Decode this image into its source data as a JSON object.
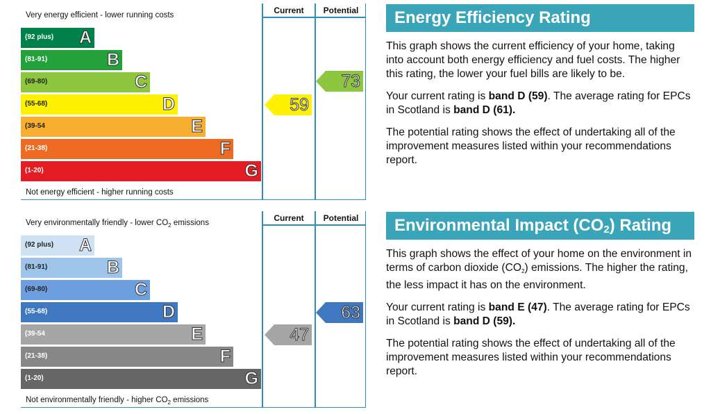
{
  "chart_data": [
    {
      "type": "bar",
      "top_label": "Very energy efficient - lower running costs",
      "bottom_label": "Not energy efficient - higher running costs",
      "column_headers": [
        "Current",
        "Potential"
      ],
      "bands": [
        {
          "range": "(92 plus)",
          "letter": "A",
          "color": "#00814a"
        },
        {
          "range": "(81-91)",
          "letter": "B",
          "color": "#23a23b"
        },
        {
          "range": "(69-80)",
          "letter": "C",
          "color": "#8dc63f"
        },
        {
          "range": "(55-68)",
          "letter": "D",
          "color": "#fff200"
        },
        {
          "range": "(39-54",
          "letter": "E",
          "color": "#f8ae2f"
        },
        {
          "range": "(21-38)",
          "letter": "F",
          "color": "#ed6b23"
        },
        {
          "range": "(1-20)",
          "letter": "G",
          "color": "#e31d23"
        }
      ],
      "current": {
        "value": 59,
        "band": "D",
        "color": "#fff200"
      },
      "potential": {
        "value": 73,
        "band": "C",
        "color": "#8dc63f"
      }
    },
    {
      "type": "bar",
      "top_label": "Very environmentally friendly - lower CO",
      "top_label_sub": "2",
      "top_label_end": " emissions",
      "bottom_label": "Not environmentally friendly - higher CO",
      "bottom_label_sub": "2",
      "bottom_label_end": " emissions",
      "column_headers": [
        "Current",
        "Potential"
      ],
      "bands": [
        {
          "range": "(92 plus)",
          "letter": "A",
          "color": "#cfe2f3"
        },
        {
          "range": "(81-91)",
          "letter": "B",
          "color": "#9fc4ea"
        },
        {
          "range": "(69-80)",
          "letter": "C",
          "color": "#6d9fe0"
        },
        {
          "range": "(55-68)",
          "letter": "D",
          "color": "#3f78c1"
        },
        {
          "range": "(39-54",
          "letter": "E",
          "color": "#a6a6a6"
        },
        {
          "range": "(21-38)",
          "letter": "F",
          "color": "#878787"
        },
        {
          "range": "(1-20)",
          "letter": "G",
          "color": "#666666"
        }
      ],
      "current": {
        "value": 47,
        "band": "E",
        "color": "#a6a6a6"
      },
      "potential": {
        "value": 63,
        "band": "D",
        "color": "#3f78c1"
      }
    }
  ],
  "energy_panel": {
    "title": "Energy Efficiency Rating",
    "p1": "This graph shows the current efficiency of your home, taking into account both energy efficiency and fuel costs. The higher this rating, the lower your fuel bills are likely to be.",
    "p2_a": "Your current rating is ",
    "p2_b": "band D (59)",
    "p2_c": ". The average rating for EPCs in Scotland is ",
    "p2_d": "band D (61).",
    "p3": "The potential rating shows the effect of undertaking all of the improvement measures listed within your recommendations report."
  },
  "env_panel": {
    "title_a": "Environmental Impact (CO",
    "title_sub": "2",
    "title_b": ") Rating",
    "p1_a": "This graph shows the effect of your home on the environment in terms of carbon dioxide (CO",
    "p1_sub": "2",
    "p1_b": ") emissions. The higher the rating, the less impact it has on the environment.",
    "p2_a": "Your current rating is ",
    "p2_b": "band E (47)",
    "p2_c": ". The average rating for EPCs in Scotland is ",
    "p2_d": "band D (59).",
    "p3": "The potential rating shows the effect of undertaking all of the improvement measures listed within your recommendations report."
  }
}
